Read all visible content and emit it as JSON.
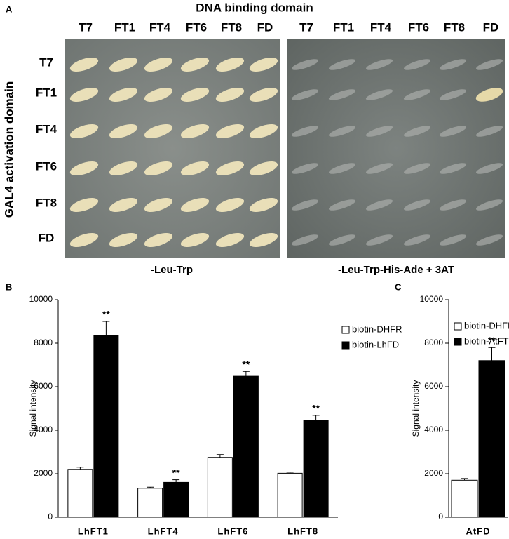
{
  "panel_a": {
    "label": "A",
    "title": "DNA binding domain",
    "columns_left": [
      "T7",
      "FT1",
      "FT4",
      "FT6",
      "FT8",
      "FD"
    ],
    "columns_right": [
      "T7",
      "FT1",
      "FT4",
      "FT6",
      "FT8",
      "FD"
    ],
    "row_axis_label": "GAL4 activation domain",
    "rows": [
      "T7",
      "FT1",
      "FT4",
      "FT6",
      "FT8",
      "FD"
    ],
    "caption_left": "-Leu-Trp",
    "caption_right": "-Leu-Trp-His-Ade + 3AT"
  },
  "chart_data": [
    {
      "type": "bar",
      "panel_label": "B",
      "ylabel": "Signal intensity",
      "categories": [
        "LhFT1",
        "LhFT4",
        "LhFT6",
        "LhFT8"
      ],
      "series": [
        {
          "name": "biotin-DHFR",
          "color": "#ffffff",
          "values": [
            2200,
            1330,
            2750,
            2020
          ],
          "errors": [
            100,
            50,
            130,
            50
          ]
        },
        {
          "name": "biotin-LhFD",
          "color": "#000000",
          "values": [
            8350,
            1600,
            6480,
            4450
          ],
          "errors": [
            650,
            120,
            220,
            230
          ],
          "annotations": [
            "**",
            "**",
            "**",
            "**"
          ]
        }
      ],
      "ylim": [
        0,
        10000
      ],
      "yticks": [
        0,
        2000,
        4000,
        6000,
        8000,
        10000
      ],
      "legend": "upper right"
    },
    {
      "type": "bar",
      "panel_label": "C",
      "ylabel": "Signal intensity",
      "categories": [
        "AtFD"
      ],
      "series": [
        {
          "name": "biotin-DHFR",
          "color": "#ffffff",
          "values": [
            1700
          ],
          "errors": [
            80
          ]
        },
        {
          "name": "biotin-AtFT",
          "color": "#000000",
          "values": [
            7200
          ],
          "errors": [
            600
          ],
          "annotations": [
            "**"
          ]
        }
      ],
      "ylim": [
        0,
        10000
      ],
      "yticks": [
        0,
        2000,
        4000,
        6000,
        8000,
        10000
      ],
      "legend": "upper left"
    }
  ]
}
